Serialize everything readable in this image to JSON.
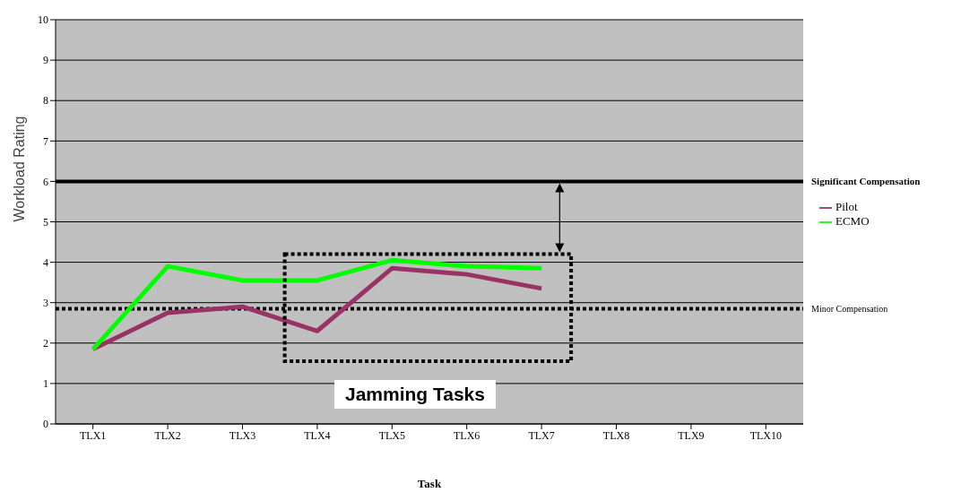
{
  "chart_data": {
    "type": "line",
    "xlabel": "Task",
    "ylabel": "Workload Rating",
    "categories": [
      "TLX1",
      "TLX2",
      "TLX3",
      "TLX4",
      "TLX5",
      "TLX6",
      "TLX7",
      "TLX8",
      "TLX9",
      "TLX10"
    ],
    "series": [
      {
        "name": "Pilot",
        "color": "#993366",
        "values": [
          1.85,
          2.75,
          2.9,
          2.3,
          3.85,
          3.7,
          3.35,
          null,
          null,
          null
        ]
      },
      {
        "name": "ECMO",
        "color": "#00ff00",
        "values": [
          1.85,
          3.9,
          3.55,
          3.55,
          4.05,
          3.9,
          3.85,
          null,
          null,
          null
        ]
      }
    ],
    "ylim": [
      0,
      10
    ],
    "yticks": [
      0,
      1,
      2,
      3,
      4,
      5,
      6,
      7,
      8,
      9,
      10
    ],
    "grid": "y",
    "legend": "right",
    "marker": "none",
    "ref_lines": [
      {
        "axis": "y",
        "value": 6,
        "label": "Significant Compensation",
        "color": "#000000",
        "line_style": "solid"
      },
      {
        "axis": "y",
        "value": 2.85,
        "label": "Minor Compensation",
        "color": "#000000",
        "line_style": "dotted"
      }
    ],
    "annotations": [
      "Jamming Tasks"
    ]
  }
}
